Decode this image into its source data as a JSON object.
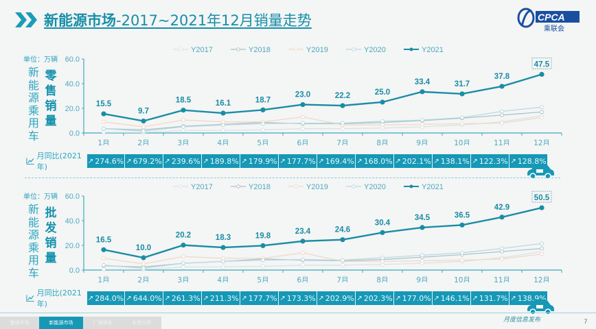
{
  "header": {
    "title_bold": "新能源市场",
    "title_rest": "-2017~2021年12月销量走势",
    "logo_text": "CPCA",
    "logo_sub": "乘联会"
  },
  "colors": {
    "accent": "#168ea8",
    "y2021": "#1a8da4",
    "y2020": "#b9dadf",
    "y2019": "#f2d8c6",
    "y2018": "#a9c3cc",
    "y2017": "#d9e3e6",
    "yoy_bg": "#1698b6"
  },
  "legend": [
    "Y2017",
    "Y2018",
    "Y2019",
    "Y2020",
    "Y2021"
  ],
  "months": [
    "1月",
    "2月",
    "3月",
    "4月",
    "5月",
    "6月",
    "7月",
    "8月",
    "9月",
    "10月",
    "11月",
    "12月"
  ],
  "retail": {
    "unit": "单位：万辆",
    "side_label": "新能源乘用车",
    "metric_label": "零售销量",
    "yoy_label": "月同比(2021年)",
    "yoy": [
      "274.6%",
      "679.2%",
      "239.6%",
      "189.8%",
      "179.9%",
      "177.7%",
      "169.4%",
      "168.0%",
      "202.1%",
      "138.1%",
      "122.3%",
      "128.8%"
    ]
  },
  "wholesale": {
    "unit": "单位：万辆",
    "side_label": "新能源乘用车",
    "metric_label": "批发销量",
    "yoy_label": "月同比(2021年)",
    "yoy": [
      "284.0%",
      "644.0%",
      "261.3%",
      "211.3%",
      "177.7%",
      "173.3%",
      "202.9%",
      "202.3%",
      "177.0%",
      "146.1%",
      "131.7%",
      "138.9%"
    ]
  },
  "footer": {
    "tabs": [
      "整体市场",
      "新能源市场",
      "厂商排名",
      "车型分析"
    ],
    "active_tab": 1,
    "monthly_release": "月度信息发布",
    "page": "7"
  },
  "chart_data": [
    {
      "type": "line",
      "title": "新能源乘用车零售销量",
      "ylabel": "单位：万辆",
      "ylim": [
        0,
        60
      ],
      "yticks": [
        "0.0",
        "20.0",
        "40.0",
        "60.0"
      ],
      "categories": [
        "1月",
        "2月",
        "3月",
        "4月",
        "5月",
        "6月",
        "7月",
        "8月",
        "9月",
        "10月",
        "11月",
        "12月"
      ],
      "legend_position": "top",
      "series": [
        {
          "name": "Y2017",
          "values": [
            0.5,
            0.4,
            2.0,
            2.0,
            2.5,
            3.5,
            3.5,
            4.0,
            5.0,
            6.5,
            9.0,
            14.0
          ]
        },
        {
          "name": "Y2018",
          "values": [
            3.5,
            2.5,
            5.5,
            7.0,
            8.5,
            7.5,
            7.5,
            8.5,
            10.0,
            12.0,
            14.5,
            17.0
          ]
        },
        {
          "name": "Y2019",
          "values": [
            9.0,
            5.0,
            10.5,
            9.0,
            9.0,
            13.0,
            6.5,
            6.5,
            7.0,
            7.5,
            8.0,
            12.5
          ]
        },
        {
          "name": "Y2020",
          "values": [
            3.5,
            1.5,
            5.0,
            6.5,
            7.5,
            8.0,
            8.0,
            9.5,
            10.5,
            12.5,
            17.5,
            21.0
          ]
        },
        {
          "name": "Y2021",
          "values": [
            15.5,
            9.7,
            18.5,
            16.1,
            18.7,
            23.0,
            22.2,
            25.0,
            33.4,
            31.7,
            37.8,
            47.5
          ]
        }
      ],
      "annotations": [
        "15.5",
        "9.7",
        "18.5",
        "16.1",
        "18.7",
        "23.0",
        "22.2",
        "25.0",
        "33.4",
        "31.7",
        "37.8",
        "47.5"
      ],
      "yoy_2021": [
        "274.6%",
        "679.2%",
        "239.6%",
        "189.8%",
        "179.9%",
        "177.7%",
        "169.4%",
        "168.0%",
        "202.1%",
        "138.1%",
        "122.3%",
        "128.8%"
      ]
    },
    {
      "type": "line",
      "title": "新能源乘用车批发销量",
      "ylabel": "单位：万辆",
      "ylim": [
        0,
        60
      ],
      "yticks": [
        "0.0",
        "20.0",
        "40.0",
        "60.0"
      ],
      "categories": [
        "1月",
        "2月",
        "3月",
        "4月",
        "5月",
        "6月",
        "7月",
        "8月",
        "9月",
        "10月",
        "11月",
        "12月"
      ],
      "legend_position": "top",
      "series": [
        {
          "name": "Y2017",
          "values": [
            0.6,
            0.5,
            2.5,
            2.5,
            3.0,
            4.0,
            4.0,
            4.5,
            5.5,
            7.0,
            10.0,
            15.0
          ]
        },
        {
          "name": "Y2018",
          "values": [
            3.5,
            2.5,
            5.5,
            7.0,
            9.0,
            8.0,
            7.5,
            8.5,
            10.5,
            12.5,
            15.0,
            17.5
          ]
        },
        {
          "name": "Y2019",
          "values": [
            9.5,
            5.0,
            11.0,
            9.5,
            9.5,
            14.0,
            7.0,
            7.0,
            7.5,
            8.0,
            9.0,
            13.0
          ]
        },
        {
          "name": "Y2020",
          "values": [
            4.0,
            1.5,
            5.5,
            7.0,
            8.0,
            8.5,
            8.0,
            10.0,
            12.0,
            14.0,
            17.5,
            21.5
          ]
        },
        {
          "name": "Y2021",
          "values": [
            16.5,
            10.0,
            20.2,
            18.3,
            19.8,
            23.4,
            24.6,
            30.4,
            34.5,
            36.5,
            42.9,
            50.5
          ]
        }
      ],
      "annotations": [
        "16.5",
        "10.0",
        "20.2",
        "18.3",
        "19.8",
        "23.4",
        "24.6",
        "30.4",
        "34.5",
        "36.5",
        "42.9",
        "50.5"
      ],
      "yoy_2021": [
        "284.0%",
        "644.0%",
        "261.3%",
        "211.3%",
        "177.7%",
        "173.3%",
        "202.9%",
        "202.3%",
        "177.0%",
        "146.1%",
        "131.7%",
        "138.9%"
      ]
    }
  ]
}
